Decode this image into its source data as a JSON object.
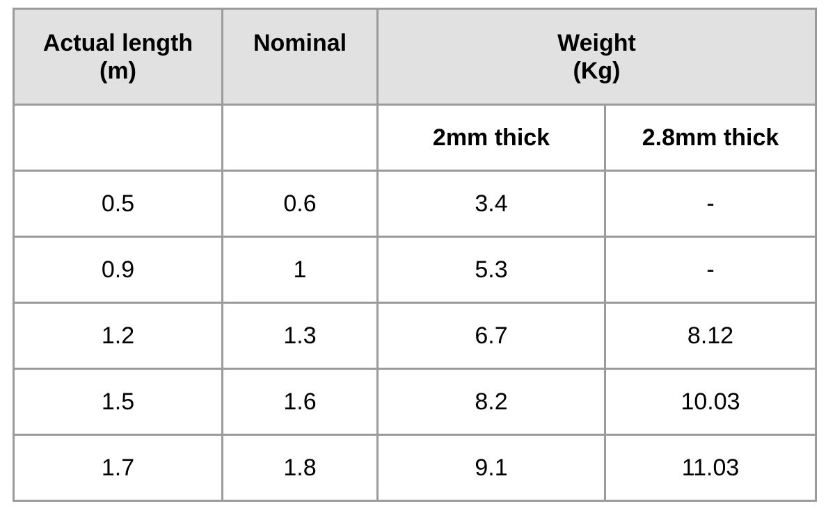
{
  "table": {
    "headers": {
      "actual_length": [
        "Actual length",
        "(m)"
      ],
      "nominal": "Nominal",
      "weight": [
        "Weight",
        "(Kg)"
      ]
    },
    "subheaders": [
      "",
      "",
      "2mm thick",
      "2.8mm thick"
    ],
    "rows": [
      [
        "0.5",
        "0.6",
        "3.4",
        "-"
      ],
      [
        "0.9",
        "1",
        "5.3",
        "-"
      ],
      [
        "1.2",
        "1.3",
        "6.7",
        "8.12"
      ],
      [
        "1.5",
        "1.6",
        "8.2",
        "10.03"
      ],
      [
        "1.7",
        "1.8",
        "9.1",
        "11.03"
      ]
    ],
    "colors": {
      "header_bg": "#e1e1e1",
      "border": "#9b9b9b"
    }
  }
}
